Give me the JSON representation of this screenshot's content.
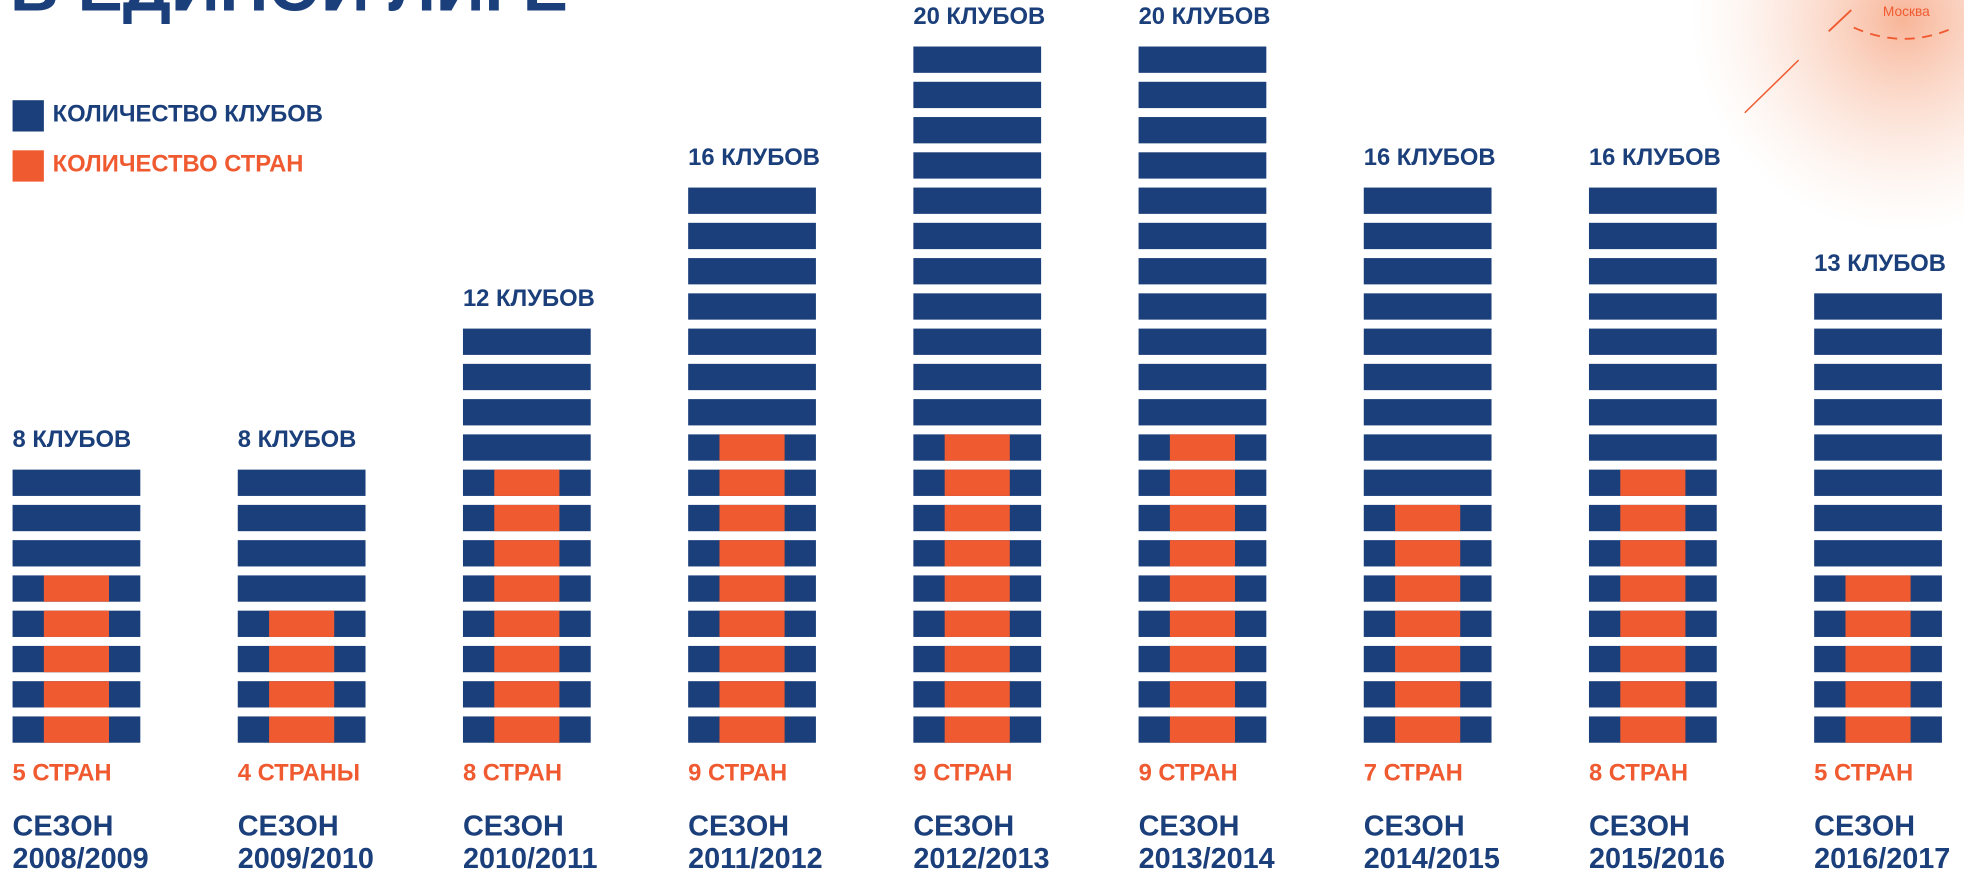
{
  "title": "В ЕДИНОЙ ЛИГЕ",
  "map_label": "Москва",
  "chart_data": {
    "type": "pictogram-bar",
    "categories": [
      [
        "СЕЗОН",
        "2008/2009"
      ],
      [
        "СЕЗОН",
        "2009/2010"
      ],
      [
        "СЕЗОН",
        "2010/2011"
      ],
      [
        "СЕЗОН",
        "2011/2012"
      ],
      [
        "СЕЗОН",
        "2012/2013"
      ],
      [
        "СЕЗОН",
        "2013/2014"
      ],
      [
        "СЕЗОН",
        "2014/2015"
      ],
      [
        "СЕЗОН",
        "2015/2016"
      ],
      [
        "СЕЗОН",
        "2016/2017"
      ]
    ],
    "series": [
      {
        "name": "КОЛИЧЕСТВО КЛУБОВ",
        "color": "#1b3f7a",
        "values": [
          8,
          8,
          12,
          16,
          20,
          20,
          16,
          16,
          13
        ],
        "value_labels": [
          "8 КЛУБОВ",
          "8 КЛУБОВ",
          "12 КЛУБОВ",
          "16 КЛУБОВ",
          "20 КЛУБОВ",
          "20 КЛУБОВ",
          "16 КЛУБОВ",
          "16 КЛУБОВ",
          "13 КЛУБОВ"
        ]
      },
      {
        "name": "КОЛИЧЕСТВО СТРАН",
        "color": "#f05a30",
        "values": [
          5,
          4,
          8,
          9,
          9,
          9,
          7,
          8,
          5
        ],
        "value_labels": [
          "5 СТРАН",
          "4 СТРАНЫ",
          "8 СТРАН",
          "9 СТРАН",
          "9 СТРАН",
          "9 СТРАН",
          "7 СТРАН",
          "8 СТРАН",
          "5 СТРАН"
        ]
      }
    ]
  }
}
